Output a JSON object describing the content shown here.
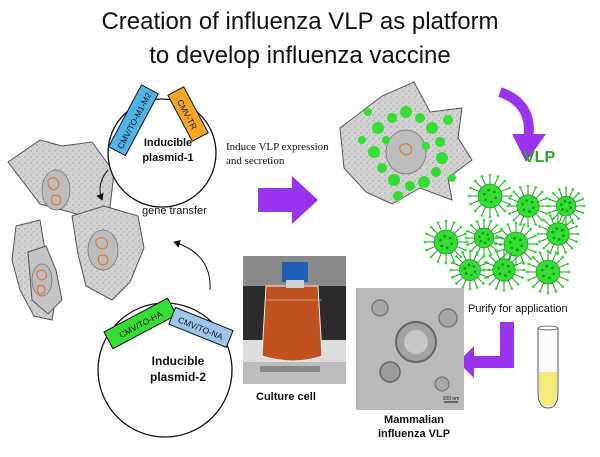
{
  "title": {
    "line1": "Creation of influenza VLP as platform",
    "line2": "to develop influenza vaccine"
  },
  "plasmid1": {
    "name_line1": "Inducible",
    "name_line2": "plasmid-1",
    "segment_promoter": "CMV/TO-M1-M2",
    "segment_terminator": "CMV-TR",
    "colors": {
      "promoter": "#4fb3e8",
      "terminator": "#f5a623"
    }
  },
  "plasmid2": {
    "name_line1": "Inducible",
    "name_line2": "plasmid-2",
    "segment_ha": "CMV/TO-HA",
    "segment_na": "CMV/TO-NA",
    "colors": {
      "ha": "#33dd33",
      "na": "#9ec6ec"
    }
  },
  "labels": {
    "gene_transfer": "gene transfer",
    "induce_line1": "Induce VLP expression",
    "induce_line2": "and secretion",
    "vlp": "VLP",
    "purify": "Purify for application",
    "culture_cell": "Culture cell",
    "mammalian_line1": "Mammalian",
    "mammalian_line2": "influenza VLP",
    "scale_bar": "100 nm"
  },
  "colors": {
    "arrow": "#9933ee",
    "vlp_green": "#33dd33",
    "cell_fill": "#d4d4d4",
    "nucleus": "#e07020",
    "vlp_label": "#22aa22"
  }
}
